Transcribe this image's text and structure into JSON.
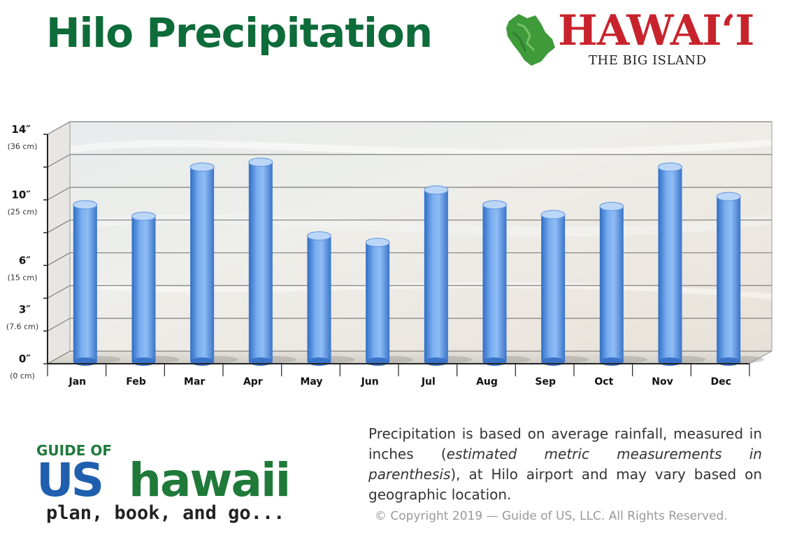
{
  "header": {
    "title": "Hilo Precipitation",
    "title_color": "#0e6b3a"
  },
  "brand_logo": {
    "word": "HAWAIʻI",
    "sub": "THE BIG ISLAND",
    "word_color": "#c8232c",
    "sub_color": "#222222",
    "island_color": "#3f9a3a"
  },
  "chart_data": {
    "type": "bar",
    "categories": [
      "Jan",
      "Feb",
      "Mar",
      "Apr",
      "May",
      "Jun",
      "Jul",
      "Aug",
      "Sep",
      "Oct",
      "Nov",
      "Dec"
    ],
    "values": [
      9.7,
      9.0,
      12.0,
      12.3,
      7.8,
      7.4,
      10.6,
      9.7,
      9.1,
      9.6,
      12.0,
      10.2
    ],
    "ylim": [
      0,
      14
    ],
    "yticks": [
      {
        "value": 0,
        "label": "0″",
        "sub": "(0 cm)"
      },
      {
        "value": 3,
        "label": "3″",
        "sub": "(7.6 cm)"
      },
      {
        "value": 6,
        "label": "6″",
        "sub": "(15 cm)"
      },
      {
        "value": 10,
        "label": "10″",
        "sub": "(25 cm)"
      },
      {
        "value": 14,
        "label": "14″",
        "sub": "(36 cm)"
      }
    ],
    "gridlines": [
      0,
      2,
      4,
      6,
      8,
      10,
      12,
      14
    ],
    "grid": true,
    "bar_color": "#5b93e0"
  },
  "footer_logo": {
    "top": "GUIDE OF",
    "us": "US",
    "hawaii": "hawaii",
    "tagline": "plan, book, and go...",
    "blue": "#1f5fae",
    "green": "#1f7a3a",
    "dark": "#222222"
  },
  "note": {
    "part1": "Precipitation is based on average rainfall, measured in inches (",
    "italic": "estimated metric measurements in parenthesis",
    "part2": "), at Hilo airport and may vary based on geographic location."
  },
  "copyright": "© Copyright 2019 — Guide of US, LLC. All Rights Reserved."
}
